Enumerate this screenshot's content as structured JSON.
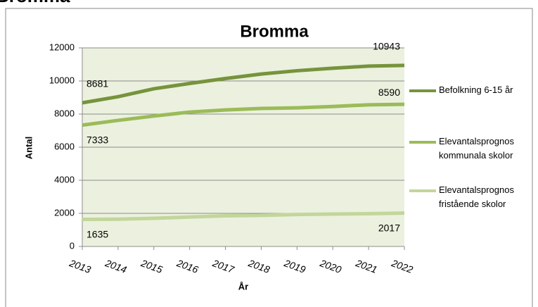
{
  "heading": "Bromma",
  "chart_data": {
    "type": "line",
    "title": "Bromma",
    "x_label": "År",
    "y_label": "Antal",
    "categories": [
      "2013",
      "2014",
      "2015",
      "2016",
      "2017",
      "2018",
      "2019",
      "2020",
      "2021",
      "2022"
    ],
    "series": [
      {
        "name": "Befolkning 6-15 år",
        "color": "#77933c",
        "values": [
          8681,
          9050,
          9530,
          9850,
          10150,
          10420,
          10620,
          10770,
          10900,
          10943
        ]
      },
      {
        "name": "Elevantalsprognos kommunala skolor",
        "color": "#9bbb59",
        "values": [
          7333,
          7620,
          7880,
          8120,
          8250,
          8340,
          8380,
          8460,
          8560,
          8590
        ]
      },
      {
        "name": "Elevantalsprognos fristående skolor",
        "color": "#c3d69b",
        "values": [
          1635,
          1650,
          1700,
          1780,
          1850,
          1880,
          1930,
          1960,
          1980,
          2017
        ]
      }
    ],
    "ylim": [
      0,
      12000
    ],
    "yticks": [
      0,
      2000,
      4000,
      6000,
      8000,
      10000,
      12000
    ],
    "grid": true
  }
}
